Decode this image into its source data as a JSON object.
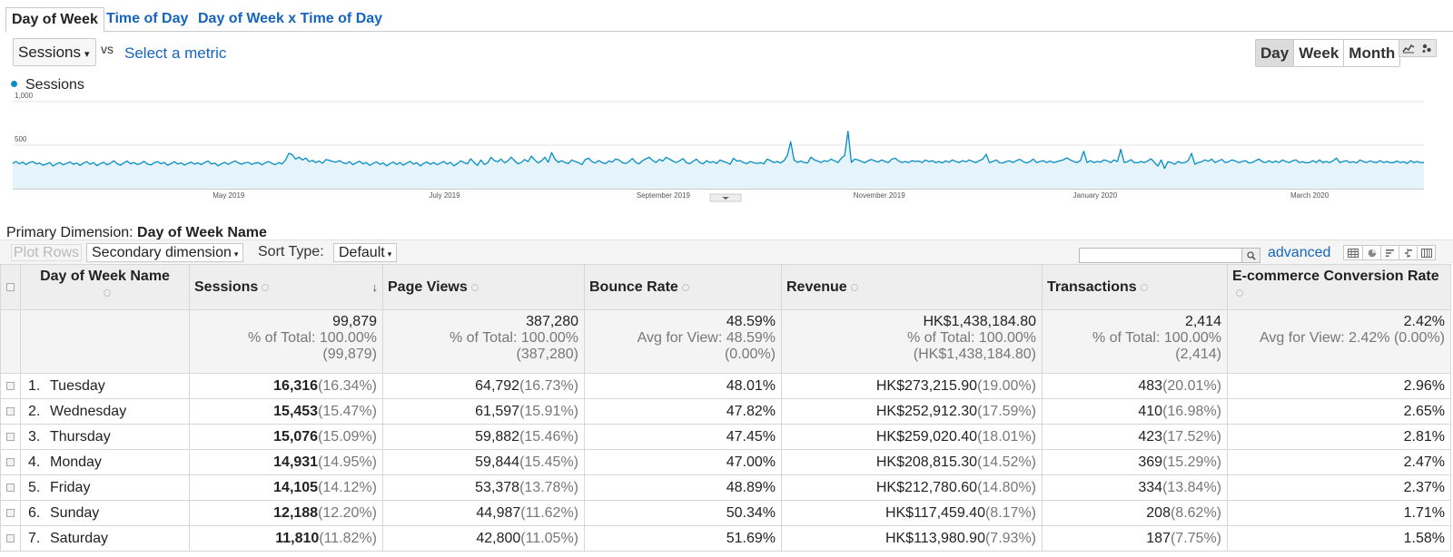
{
  "tabs": [
    "Day of Week",
    "Time of Day",
    "Day of Week x Time of Day"
  ],
  "controls": {
    "metric": "Sessions",
    "vs": "vs",
    "select_metric": "Select a metric",
    "periods": [
      "Day",
      "Week",
      "Month"
    ],
    "active_period": "Day"
  },
  "chart_data": {
    "type": "area",
    "series": [
      {
        "name": "Sessions",
        "color": "#058dc7"
      }
    ],
    "y_ticks": [
      "1,000",
      "500"
    ],
    "ylim": [
      0,
      1000
    ],
    "x_ticks": [
      "May 2019",
      "July 2019",
      "September 2019",
      "November 2019",
      "January 2020",
      "March 2020"
    ],
    "values": [
      290,
      312,
      285,
      305,
      276,
      302,
      310,
      285,
      294,
      270,
      282,
      300,
      260,
      285,
      300,
      275,
      290,
      308,
      280,
      296,
      268,
      295,
      310,
      280,
      300,
      265,
      287,
      303,
      275,
      292,
      320,
      288,
      270,
      296,
      318,
      285,
      300,
      278,
      290,
      315,
      282,
      273,
      298,
      310,
      286,
      301,
      270,
      288,
      310,
      283,
      296,
      272,
      291,
      304,
      281,
      298,
      276,
      300,
      318,
      284,
      295,
      262,
      287,
      302,
      279,
      300,
      320,
      296,
      281,
      298,
      302,
      278,
      294,
      299,
      274,
      297,
      312,
      290,
      276,
      300,
      285,
      328,
      406,
      392,
      340,
      362,
      330,
      352,
      310,
      325,
      300,
      318,
      292,
      334,
      326,
      312,
      305,
      322,
      300,
      286,
      310,
      275,
      298,
      316,
      285,
      300,
      268,
      290,
      308,
      280,
      296,
      262,
      289,
      305,
      278,
      300,
      270,
      294,
      314,
      282,
      298,
      263,
      290,
      306,
      280,
      300,
      276,
      294,
      312,
      283,
      303,
      262,
      288,
      320,
      300,
      286,
      344,
      300,
      268,
      330,
      278,
      296,
      360,
      322,
      310,
      340,
      297,
      318,
      363,
      322,
      285,
      300,
      335,
      310,
      374,
      330,
      296,
      320,
      360,
      303,
      415,
      340,
      302,
      322,
      300,
      290,
      330,
      312,
      300,
      276,
      334,
      350,
      310,
      296,
      324,
      300,
      288,
      318,
      305,
      340,
      330,
      300,
      290,
      312,
      347,
      302,
      285,
      322,
      344,
      360,
      325,
      300,
      336,
      318,
      360,
      340,
      318,
      300,
      320,
      346,
      300,
      286,
      315,
      340,
      300,
      285,
      322,
      300,
      310,
      290,
      330,
      312,
      300,
      280,
      350,
      318,
      322,
      300,
      288,
      313,
      298,
      290,
      300,
      285,
      340,
      322,
      300,
      312,
      296,
      322,
      380,
      540,
      330,
      302,
      318,
      300,
      296,
      362,
      330,
      318,
      300,
      322,
      312,
      340,
      320,
      300,
      350,
      380,
      660,
      302,
      340,
      330,
      312,
      298,
      322,
      335,
      318,
      306,
      330,
      312,
      300,
      340,
      350,
      320,
      300,
      312,
      300,
      322,
      312,
      318,
      300,
      330,
      310,
      322,
      300,
      312,
      296,
      320,
      304,
      330,
      312,
      300,
      322,
      308,
      330,
      312,
      300,
      322,
      340,
      395,
      300,
      312,
      330,
      298,
      296,
      312,
      320,
      300,
      322,
      338,
      312,
      296,
      310,
      340,
      300,
      312,
      322,
      300,
      318,
      300,
      310,
      322,
      332,
      354,
      330,
      312,
      300,
      322,
      430,
      300,
      322,
      300,
      312,
      305,
      330,
      320,
      300,
      330,
      312,
      452,
      300,
      310,
      333,
      300,
      298,
      312,
      300,
      320,
      343,
      300,
      260,
      330,
      232,
      310,
      300,
      280,
      312,
      296,
      300,
      322,
      405,
      280,
      300,
      310,
      330,
      316,
      340,
      300,
      320,
      336,
      300,
      310,
      330,
      318,
      300,
      312,
      322,
      296,
      300,
      322,
      340,
      310,
      300,
      322,
      300,
      318,
      300,
      330,
      312,
      300,
      320,
      330,
      300,
      310,
      297,
      300,
      322,
      300,
      330,
      300,
      312,
      300,
      320,
      352,
      300,
      312,
      322,
      300,
      310,
      296,
      330,
      312,
      300,
      320,
      305,
      300,
      322,
      300,
      312,
      298,
      300,
      318,
      300,
      310,
      290,
      322,
      300,
      312,
      298,
      300
    ]
  },
  "primary_dimension": {
    "label": "Primary Dimension:",
    "value": "Day of Week Name"
  },
  "table_controls": {
    "plot_rows": "Plot Rows",
    "secondary_dimension": "Secondary dimension",
    "sort_type_label": "Sort Type:",
    "sort_type": "Default",
    "advanced": "advanced"
  },
  "table": {
    "columns": [
      "Day of Week Name",
      "Sessions",
      "Page Views",
      "Bounce Rate",
      "Revenue",
      "Transactions",
      "E-commerce Conversion Rate"
    ],
    "totals": [
      {
        "value": "99,879",
        "line2": "% of Total: 100.00%",
        "line3": "(99,879)"
      },
      {
        "value": "387,280",
        "line2": "% of Total: 100.00%",
        "line3": "(387,280)"
      },
      {
        "value": "48.59%",
        "line2": "Avg for View: 48.59%",
        "line3": "(0.00%)"
      },
      {
        "value": "HK$1,438,184.80",
        "line2": "% of Total: 100.00%",
        "line3": "(HK$1,438,184.80)"
      },
      {
        "value": "2,414",
        "line2": "% of Total: 100.00%",
        "line3": "(2,414)"
      },
      {
        "value": "2.42%",
        "line2": "Avg for View: 2.42% (0.00%)",
        "line3": ""
      }
    ],
    "rows": [
      {
        "index": "1.",
        "name": "Tuesday",
        "sessions": "16,316",
        "sessions_pct": "(16.34%)",
        "pageviews": "64,792",
        "pageviews_pct": "(16.73%)",
        "bounce": "48.01%",
        "revenue": "HK$273,215.90",
        "revenue_pct": "(19.00%)",
        "transactions": "483",
        "transactions_pct": "(20.01%)",
        "conversion": "2.96%"
      },
      {
        "index": "2.",
        "name": "Wednesday",
        "sessions": "15,453",
        "sessions_pct": "(15.47%)",
        "pageviews": "61,597",
        "pageviews_pct": "(15.91%)",
        "bounce": "47.82%",
        "revenue": "HK$252,912.30",
        "revenue_pct": "(17.59%)",
        "transactions": "410",
        "transactions_pct": "(16.98%)",
        "conversion": "2.65%"
      },
      {
        "index": "3.",
        "name": "Thursday",
        "sessions": "15,076",
        "sessions_pct": "(15.09%)",
        "pageviews": "59,882",
        "pageviews_pct": "(15.46%)",
        "bounce": "47.45%",
        "revenue": "HK$259,020.40",
        "revenue_pct": "(18.01%)",
        "transactions": "423",
        "transactions_pct": "(17.52%)",
        "conversion": "2.81%"
      },
      {
        "index": "4.",
        "name": "Monday",
        "sessions": "14,931",
        "sessions_pct": "(14.95%)",
        "pageviews": "59,844",
        "pageviews_pct": "(15.45%)",
        "bounce": "47.00%",
        "revenue": "HK$208,815.30",
        "revenue_pct": "(14.52%)",
        "transactions": "369",
        "transactions_pct": "(15.29%)",
        "conversion": "2.47%"
      },
      {
        "index": "5.",
        "name": "Friday",
        "sessions": "14,105",
        "sessions_pct": "(14.12%)",
        "pageviews": "53,378",
        "pageviews_pct": "(13.78%)",
        "bounce": "48.89%",
        "revenue": "HK$212,780.60",
        "revenue_pct": "(14.80%)",
        "transactions": "334",
        "transactions_pct": "(13.84%)",
        "conversion": "2.37%"
      },
      {
        "index": "6.",
        "name": "Sunday",
        "sessions": "12,188",
        "sessions_pct": "(12.20%)",
        "pageviews": "44,987",
        "pageviews_pct": "(11.62%)",
        "bounce": "50.34%",
        "revenue": "HK$117,459.40",
        "revenue_pct": "(8.17%)",
        "transactions": "208",
        "transactions_pct": "(8.62%)",
        "conversion": "1.71%"
      },
      {
        "index": "7.",
        "name": "Saturday",
        "sessions": "11,810",
        "sessions_pct": "(11.82%)",
        "pageviews": "42,800",
        "pageviews_pct": "(11.05%)",
        "bounce": "51.69%",
        "revenue": "HK$113,980.90",
        "revenue_pct": "(7.93%)",
        "transactions": "187",
        "transactions_pct": "(7.75%)",
        "conversion": "1.58%"
      }
    ]
  },
  "icons": [
    "dropdown-caret-icon",
    "line-chart-icon",
    "motion-chart-icon",
    "sort-down-arrow-icon",
    "help-icon",
    "search-icon",
    "table-view-icon",
    "pie-view-icon",
    "performance-view-icon",
    "comparison-view-icon",
    "pivot-view-icon",
    "checkbox-icon"
  ]
}
